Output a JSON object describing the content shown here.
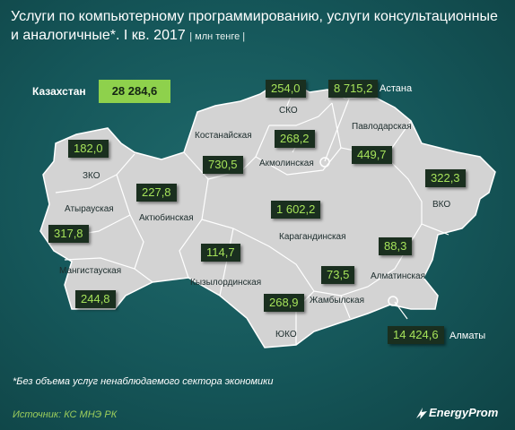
{
  "title": "Услуги по компьютерному программированию, услуги консультационные и аналогичные*. I кв. 2017",
  "unit": "| млн тенге |",
  "country": {
    "name": "Казахстан",
    "total": "28 284,6"
  },
  "regions": {
    "sko": {
      "name": "СКО",
      "value": "254,0"
    },
    "astana": {
      "name": "Астана",
      "value": "8 715,2"
    },
    "pavlodar": {
      "name": "Павлодарская",
      "value": "449,7"
    },
    "kostanay": {
      "name": "Костанайская",
      "value": "730,5"
    },
    "akmola": {
      "name": "Акмолинская",
      "value": "268,2"
    },
    "zko": {
      "name": "ЗКО",
      "value": "182,0"
    },
    "aktobe": {
      "name": "Актюбинская",
      "value": "227,8"
    },
    "atyrau": {
      "name": "Атырауская",
      "value": "317,8"
    },
    "vko": {
      "name": "ВКО",
      "value": "322,3"
    },
    "karaganda": {
      "name": "Карагандинская",
      "value": "1 602,2"
    },
    "mangystau": {
      "name": "Мангистауская",
      "value": "244,8"
    },
    "kyzylorda": {
      "name": "Кызылординская",
      "value": "114,7"
    },
    "almaty_reg": {
      "name": "Алматинская",
      "value": "88,3"
    },
    "zhambyl": {
      "name": "Жамбылская",
      "value": "73,5"
    },
    "yuko": {
      "name": "ЮКО",
      "value": "268,9"
    },
    "almaty_city": {
      "name": "Алматы",
      "value": "14 424,6"
    }
  },
  "footnote": "*Без объема услуг ненаблюдаемого сектора экономики",
  "source": "Источник: КС МНЭ РК",
  "logo": "EnergyProm",
  "colors": {
    "map": "#d2d2d2",
    "value_box": "#1a2f1f",
    "value_text": "#a6e35a",
    "total_box": "#8ed14c"
  }
}
